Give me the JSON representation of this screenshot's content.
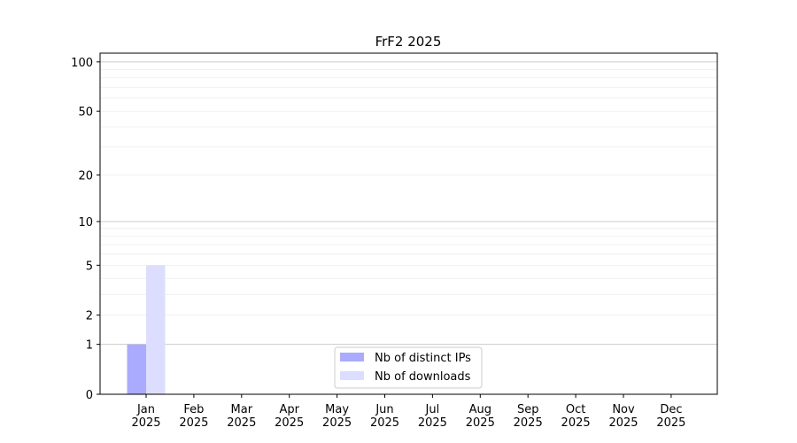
{
  "chart_data": {
    "type": "bar",
    "title": "FrF2 2025",
    "xlabel": "",
    "ylabel": "",
    "yscale": "log10(1+y)",
    "ylim": [
      0,
      113
    ],
    "yticks": [
      0,
      1,
      2,
      5,
      10,
      20,
      50,
      100
    ],
    "ytick_labels": [
      "0",
      "1",
      "2",
      "5",
      "10",
      "20",
      "50",
      "100"
    ],
    "grid": true,
    "legend_position": "bottom-center",
    "categories": [
      "Jan\n2025",
      "Feb\n2025",
      "Mar\n2025",
      "Apr\n2025",
      "May\n2025",
      "Jun\n2025",
      "Jul\n2025",
      "Aug\n2025",
      "Sep\n2025",
      "Oct\n2025",
      "Nov\n2025",
      "Dec\n2025"
    ],
    "category_lines": [
      [
        "Jan",
        "2025"
      ],
      [
        "Feb",
        "2025"
      ],
      [
        "Mar",
        "2025"
      ],
      [
        "Apr",
        "2025"
      ],
      [
        "May",
        "2025"
      ],
      [
        "Jun",
        "2025"
      ],
      [
        "Jul",
        "2025"
      ],
      [
        "Aug",
        "2025"
      ],
      [
        "Sep",
        "2025"
      ],
      [
        "Oct",
        "2025"
      ],
      [
        "Nov",
        "2025"
      ],
      [
        "Dec",
        "2025"
      ]
    ],
    "series": [
      {
        "name": "Nb of distinct IPs",
        "color": "#aaaaff",
        "values": [
          1,
          0,
          0,
          0,
          0,
          0,
          0,
          0,
          0,
          0,
          0,
          0
        ]
      },
      {
        "name": "Nb of downloads",
        "color": "#ddddff",
        "values": [
          5,
          0,
          0,
          0,
          0,
          0,
          0,
          0,
          0,
          0,
          0,
          0
        ]
      }
    ]
  }
}
